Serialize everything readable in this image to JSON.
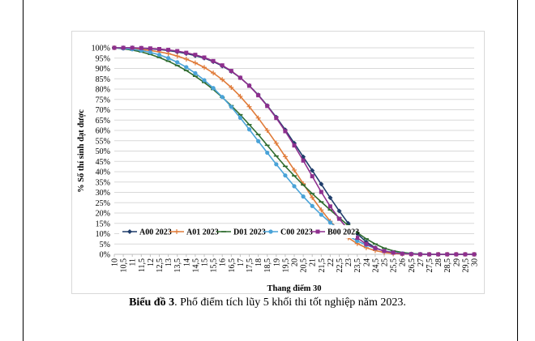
{
  "caption": {
    "label": "Biểu đồ 3",
    "text": ". Phổ điểm tích lũy 5 khối thi tốt nghiệp năm 2023."
  },
  "chart_data": {
    "type": "line",
    "title": "",
    "xlabel": "Thang điểm 30",
    "ylabel": "% Số thí sinh đạt được",
    "x": [
      10,
      10.5,
      11,
      11.5,
      12,
      12.5,
      13,
      13.5,
      14,
      14.5,
      15,
      15.5,
      16,
      16.5,
      17,
      17.5,
      18,
      18.5,
      19,
      19.5,
      20,
      20.5,
      21,
      21.5,
      22,
      22.5,
      23,
      23.5,
      24,
      24.5,
      25,
      25.5,
      26,
      26.5,
      27,
      27.5,
      28,
      28.5,
      29,
      29.5,
      30
    ],
    "x_tick_labels": [
      "10",
      "10,5",
      "11",
      "11,5",
      "12",
      "12,5",
      "13",
      "13,5",
      "14",
      "14,5",
      "15",
      "15,5",
      "16",
      "16,5",
      "17",
      "17,5",
      "18",
      "18,5",
      "19",
      "19,5",
      "20",
      "20,5",
      "21",
      "21,5",
      "22",
      "22,5",
      "23",
      "23,5",
      "24",
      "24,5",
      "25",
      "25,5",
      "26",
      "26,5",
      "27",
      "27,5",
      "28",
      "28,5",
      "29",
      "29,5",
      "30"
    ],
    "y_ticks": [
      "0%",
      "5%",
      "10%",
      "15%",
      "20%",
      "25%",
      "30%",
      "35%",
      "40%",
      "45%",
      "50%",
      "55%",
      "60%",
      "65%",
      "70%",
      "75%",
      "80%",
      "85%",
      "90%",
      "95%",
      "100%"
    ],
    "ylim": [
      0,
      100
    ],
    "grid": "horizontal",
    "legend_position": "bottom-left",
    "series": [
      {
        "name": "A00 2023",
        "color": "#1f3d6b",
        "marker": "diamond",
        "values": [
          100,
          100,
          100,
          99.8,
          99.5,
          99.2,
          98.7,
          98,
          97.2,
          96.2,
          95,
          93.3,
          91.2,
          88.6,
          85.5,
          81.7,
          77.2,
          72,
          66.4,
          60.3,
          53.8,
          47.2,
          40.6,
          34,
          27.4,
          21,
          15,
          10,
          6,
          3.2,
          1.5,
          0.7,
          0.3,
          0.1,
          0,
          0,
          0,
          0,
          0,
          0,
          0
        ]
      },
      {
        "name": "A01 2023",
        "color": "#e07b39",
        "marker": "plus",
        "values": [
          100,
          99.8,
          99.5,
          99.2,
          98.7,
          98,
          97.2,
          96,
          94.5,
          92.7,
          90.5,
          87.8,
          84.6,
          80.8,
          76.5,
          71.5,
          66,
          60,
          53.8,
          47.3,
          40.8,
          34.2,
          27.5,
          21.5,
          16,
          11.5,
          8,
          5.2,
          3.2,
          1.8,
          0.9,
          0.4,
          0.2,
          0.1,
          0,
          0,
          0,
          0,
          0,
          0,
          0
        ]
      },
      {
        "name": "D01 2023",
        "color": "#2e6b2e",
        "marker": "dash",
        "values": [
          100,
          99.5,
          98.9,
          98,
          96.8,
          95.3,
          93.5,
          91.4,
          89,
          86.2,
          83.2,
          79.8,
          76,
          72,
          67.6,
          62.8,
          58,
          52.8,
          47.6,
          42.6,
          38,
          33.6,
          29.4,
          25.4,
          21.5,
          17.7,
          14,
          10.5,
          7.5,
          5,
          3,
          1.7,
          0.9,
          0.4,
          0.2,
          0.1,
          0,
          0,
          0,
          0,
          0
        ]
      },
      {
        "name": "C00 2023",
        "color": "#4aa3d8",
        "marker": "circle",
        "values": [
          100,
          99.7,
          99.3,
          98.7,
          97.8,
          96.6,
          95,
          93,
          90.6,
          87.7,
          84.3,
          80.5,
          76.2,
          71.4,
          66.1,
          60.5,
          54.8,
          49.2,
          43.6,
          38.2,
          33,
          28,
          23.4,
          19.2,
          15.4,
          12,
          9,
          6.5,
          4.5,
          2.9,
          1.7,
          0.9,
          0.4,
          0.2,
          0.1,
          0,
          0,
          0,
          0,
          0,
          0
        ]
      },
      {
        "name": "B00 2023",
        "color": "#8e2f8e",
        "marker": "square",
        "values": [
          100,
          100,
          100,
          99.9,
          99.7,
          99.4,
          99,
          98.4,
          97.6,
          96.6,
          95.3,
          93.6,
          91.5,
          88.8,
          85.5,
          81.6,
          77,
          71.8,
          66,
          59.6,
          52.7,
          45.4,
          37.8,
          30.2,
          23.2,
          17.2,
          12,
          8,
          5,
          3,
          1.6,
          0.8,
          0.3,
          0.1,
          0,
          0,
          0,
          0,
          0,
          0,
          0
        ]
      }
    ]
  }
}
